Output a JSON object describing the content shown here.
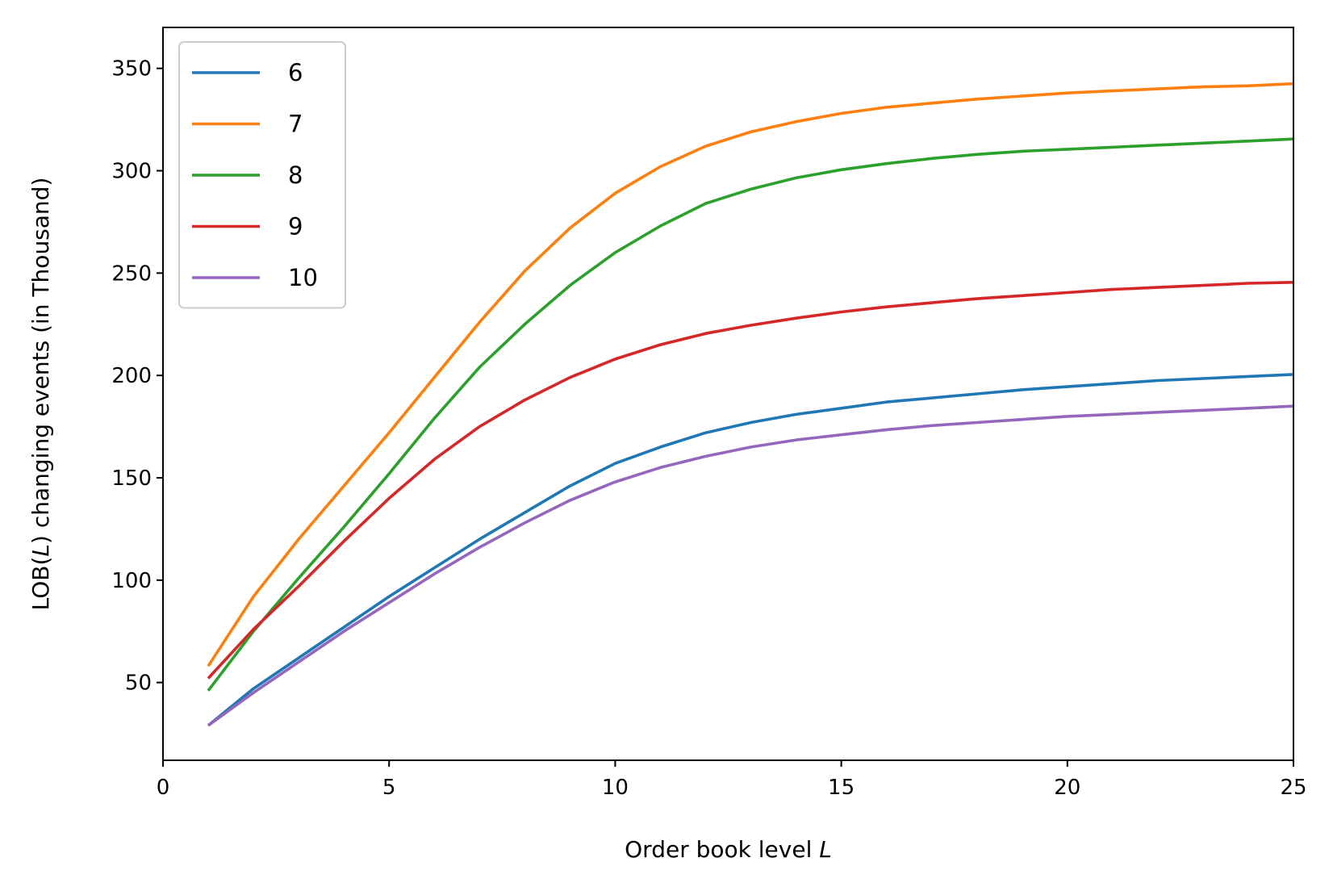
{
  "chart_data": {
    "type": "line",
    "x": [
      1,
      2,
      3,
      4,
      5,
      6,
      7,
      8,
      9,
      10,
      11,
      12,
      13,
      14,
      15,
      16,
      17,
      18,
      19,
      20,
      21,
      22,
      23,
      24,
      25
    ],
    "series": [
      {
        "name": "6",
        "color": "#1f77b4",
        "values": [
          29,
          47,
          62,
          77,
          92,
          106,
          120,
          133,
          146,
          157,
          165,
          172,
          177,
          181,
          184,
          187,
          189,
          191,
          193,
          194.5,
          196,
          197.5,
          198.5,
          199.5,
          200.5
        ]
      },
      {
        "name": "7",
        "color": "#ff7f0e",
        "values": [
          58,
          92,
          120,
          146,
          172,
          199,
          226,
          251,
          272,
          289,
          302,
          312,
          319,
          324,
          328,
          331,
          333,
          335,
          336.5,
          338,
          339,
          340,
          341,
          341.5,
          342.5
        ]
      },
      {
        "name": "8",
        "color": "#2ca02c",
        "values": [
          46,
          75,
          101,
          126,
          152,
          179,
          204,
          225,
          244,
          260,
          273,
          284,
          291,
          296.5,
          300.5,
          303.5,
          306,
          308,
          309.5,
          310.5,
          311.5,
          312.5,
          313.5,
          314.5,
          315.5
        ]
      },
      {
        "name": "9",
        "color": "#d62728",
        "values": [
          52,
          76,
          97,
          119,
          140,
          159,
          175,
          188,
          199,
          208,
          215,
          220.5,
          224.5,
          228,
          231,
          233.5,
          235.5,
          237.5,
          239,
          240.5,
          242,
          243,
          244,
          245,
          245.5
        ]
      },
      {
        "name": "10",
        "color": "#9467bd",
        "values": [
          29,
          45,
          60,
          75,
          89,
          103,
          116,
          128,
          139,
          148,
          155,
          160.5,
          165,
          168.5,
          171,
          173.5,
          175.5,
          177,
          178.5,
          180,
          181,
          182,
          183,
          184,
          185
        ]
      }
    ],
    "xlabel_prefix": "Order book level ",
    "xlabel_var": "L",
    "ylabel_pre": "LOB(",
    "ylabel_var": "L",
    "ylabel_post": ") changing events (in Thousand)",
    "xlim": [
      0,
      25
    ],
    "ylim": [
      12,
      370
    ],
    "xticks": [
      0,
      5,
      10,
      15,
      20,
      25
    ],
    "yticks": [
      50,
      100,
      150,
      200,
      250,
      300,
      350
    ],
    "grid": false,
    "legend_position": "top-left"
  }
}
